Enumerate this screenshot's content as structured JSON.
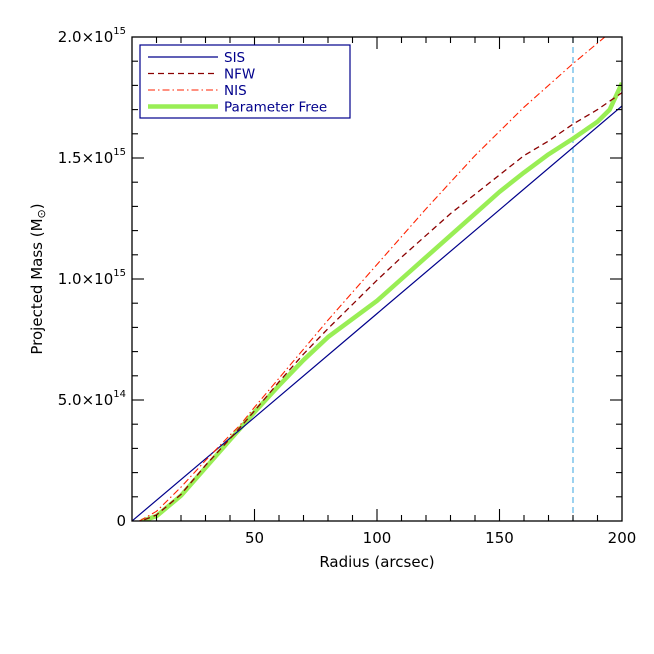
{
  "chart_data": {
    "type": "line",
    "title": "",
    "xlabel": "Radius (arcsec)",
    "ylabel": "Projected Mass (M",
    "ylabel_symbol": "⊙",
    "ylabel_close": ")",
    "xlim": [
      0,
      200
    ],
    "ylim": [
      0,
      2000000000000000.0
    ],
    "grid": false,
    "legend_position": "top-left",
    "x_ticks": [
      {
        "value": 50,
        "label": "50"
      },
      {
        "value": 100,
        "label": "100"
      },
      {
        "value": 150,
        "label": "150"
      },
      {
        "value": 200,
        "label": "200"
      }
    ],
    "y_ticks": [
      {
        "value": 0,
        "label": "0",
        "mantissa": "0",
        "exponent": ""
      },
      {
        "value": 500000000000000.0,
        "label": "5.0×10^14",
        "mantissa": "5.0×10",
        "exponent": "14"
      },
      {
        "value": 1000000000000000.0,
        "label": "1.0×10^15",
        "mantissa": "1.0×10",
        "exponent": "15"
      },
      {
        "value": 1500000000000000.0,
        "label": "1.5×10^15",
        "mantissa": "1.5×10",
        "exponent": "15"
      },
      {
        "value": 2000000000000000.0,
        "label": "2.0×10^15",
        "mantissa": "2.0×10",
        "exponent": "15"
      }
    ],
    "reference_line": {
      "x": 180,
      "color": "#5ab4e6",
      "style": "dashed"
    },
    "series": [
      {
        "name": "SIS",
        "color": "#00008b",
        "style": "solid",
        "x": [
          0,
          50,
          100,
          150,
          200
        ],
        "y": [
          0,
          428000000000000.0,
          857000000000000.0,
          1286000000000000.0,
          1715000000000000.0
        ]
      },
      {
        "name": "NFW",
        "color": "#8b0000",
        "style": "dashed",
        "x": [
          5,
          10,
          20,
          30,
          40,
          44,
          50,
          60,
          70,
          80,
          90,
          100,
          110,
          120,
          130,
          140,
          150,
          160,
          170,
          180,
          190,
          200
        ],
        "y": [
          5000000000000.0,
          25000000000000.0,
          110000000000000.0,
          230000000000000.0,
          340000000000000.0,
          385000000000000.0,
          455000000000000.0,
          575000000000000.0,
          690000000000000.0,
          795000000000000.0,
          895000000000000.0,
          995000000000000.0,
          1090000000000000.0,
          1180000000000000.0,
          1270000000000000.0,
          1350000000000000.0,
          1430000000000000.0,
          1510000000000000.0,
          1570000000000000.0,
          1640000000000000.0,
          1700000000000000.0,
          1770000000000000.0
        ]
      },
      {
        "name": "NIS",
        "color": "#ff2200",
        "style": "dashdot",
        "x": [
          3,
          10,
          20,
          30,
          40,
          44,
          50,
          60,
          80,
          100,
          120,
          140,
          160,
          180,
          193
        ],
        "y": [
          0,
          40000000000000.0,
          140000000000000.0,
          250000000000000.0,
          355000000000000.0,
          395000000000000.0,
          470000000000000.0,
          590000000000000.0,
          830000000000000.0,
          1060000000000000.0,
          1290000000000000.0,
          1510000000000000.0,
          1710000000000000.0,
          1890000000000000.0,
          2000000000000000.0
        ]
      },
      {
        "name": "Parameter Free",
        "color": "#99ee55",
        "style": "solid-thick",
        "x": [
          4,
          10,
          20,
          30,
          40,
          45,
          50,
          60,
          70,
          80,
          90,
          100,
          110,
          120,
          130,
          140,
          150,
          160,
          170,
          180,
          185,
          190,
          195,
          200
        ],
        "y": [
          0,
          20000000000000.0,
          105000000000000.0,
          220000000000000.0,
          335000000000000.0,
          392000000000000.0,
          450000000000000.0,
          560000000000000.0,
          665000000000000.0,
          760000000000000.0,
          835000000000000.0,
          910000000000000.0,
          1000000000000000.0,
          1090000000000000.0,
          1180000000000000.0,
          1270000000000000.0,
          1360000000000000.0,
          1440000000000000.0,
          1515000000000000.0,
          1580000000000000.0,
          1615000000000000.0,
          1650000000000000.0,
          1700000000000000.0,
          1810000000000000.0
        ]
      }
    ]
  }
}
